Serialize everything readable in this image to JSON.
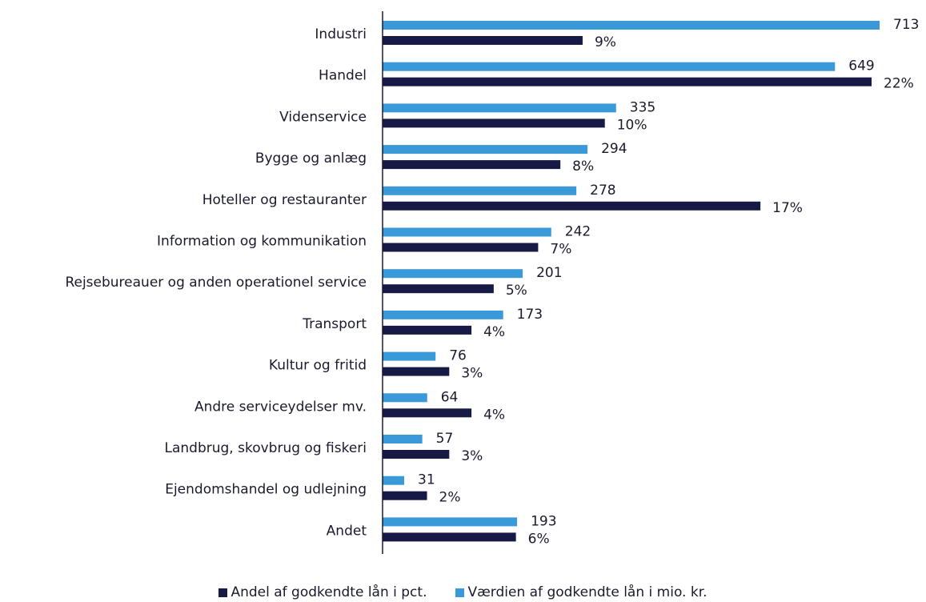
{
  "chart_data": {
    "type": "bar",
    "orientation": "horizontal",
    "categories": [
      "Industri",
      "Handel",
      "Videnservice",
      "Bygge og anlæg",
      "Hoteller og restauranter",
      "Information og kommunikation",
      "Rejsebureauer og anden operationel service",
      "Transport",
      "Kultur og fritid",
      "Andre serviceydelser  mv.",
      "Landbrug, skovbrug og fiskeri",
      "Ejendomshandel og udlejning",
      "Andet"
    ],
    "series": [
      {
        "name": "Værdien af godkendte lån i mio. kr.",
        "color": "#3a9ad9",
        "values": [
          713,
          649,
          335,
          294,
          278,
          242,
          201,
          173,
          76,
          64,
          57,
          31,
          193
        ],
        "labels": [
          "713",
          "649",
          "335",
          "294",
          "278",
          "242",
          "201",
          "173",
          "76",
          "64",
          "57",
          "31",
          "193"
        ]
      },
      {
        "name": "Andel af godkendte lån i pct.",
        "color": "#171a45",
        "values": [
          9,
          22,
          10,
          8,
          17,
          7,
          5,
          4,
          3,
          4,
          3,
          2,
          6
        ],
        "labels": [
          "9%",
          "22%",
          "10%",
          "8%",
          "17%",
          "7%",
          "5%",
          "4%",
          "3%",
          "4%",
          "3%",
          "2%",
          "6%"
        ]
      }
    ],
    "legend_position": "bottom-center",
    "grid": false
  },
  "legend": [
    {
      "label": "Andel af godkendte lån i pct.",
      "color": "#171a45"
    },
    {
      "label": "Værdien af godkendte lån i mio. kr.",
      "color": "#3a9ad9"
    }
  ]
}
